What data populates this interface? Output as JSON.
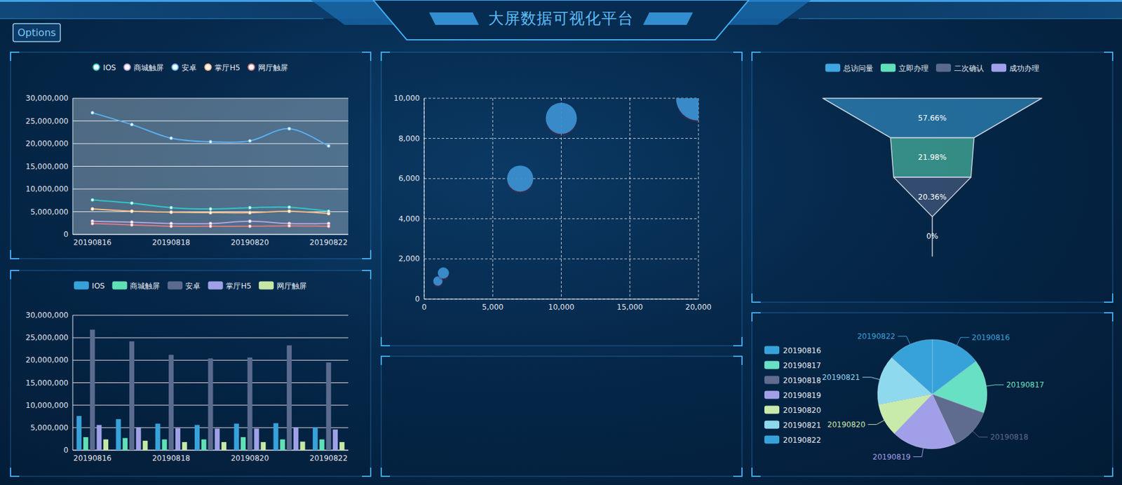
{
  "page": {
    "title": "大屏数据可视化平台",
    "button": "Options"
  },
  "chart_data": [
    {
      "type": "line",
      "categories": [
        "20190816",
        null,
        "20190818",
        null,
        "20190820",
        null,
        "20190822"
      ],
      "series": [
        {
          "name": "IOS",
          "color": "#2ec7c9",
          "values": [
            7600000,
            6900000,
            5900000,
            5600000,
            5900000,
            6000000,
            5100000
          ]
        },
        {
          "name": "商城触屏",
          "color": "#b6a2de",
          "values": [
            2900000,
            2700000,
            2400000,
            2400000,
            2900000,
            2400000,
            2400000
          ]
        },
        {
          "name": "安卓",
          "color": "#5ab1ef",
          "values": [
            26800000,
            24200000,
            21200000,
            20400000,
            20600000,
            23300000,
            19500000
          ]
        },
        {
          "name": "掌厅H5",
          "color": "#ffb980",
          "values": [
            5600000,
            5100000,
            4900000,
            4800000,
            4800000,
            5100000,
            4600000
          ]
        },
        {
          "name": "网厅触屏",
          "color": "#d87a80",
          "values": [
            2400000,
            2100000,
            1800000,
            1800000,
            1800000,
            1900000,
            1800000
          ]
        }
      ],
      "ylim": [
        0,
        30000000
      ],
      "yticks": [
        0,
        {
          "value": 5000000,
          "label": "5,000,000"
        },
        {
          "value": 10000000,
          "label": "10,000,000"
        },
        {
          "value": 15000000,
          "label": "15,000,000"
        },
        {
          "value": 20000000,
          "label": "20,000,000"
        },
        {
          "value": 25000000,
          "label": "25,000,000"
        },
        {
          "value": 30000000,
          "label": "30,000,000"
        }
      ],
      "grid": true,
      "legend": "top",
      "marker": "circle",
      "line_style": "smooth"
    },
    {
      "type": "bar",
      "categories": [
        "20190816",
        null,
        "20190818",
        null,
        "20190820",
        null,
        "20190822"
      ],
      "series": [
        {
          "name": "IOS",
          "color": "#37a2da",
          "values": [
            7600000,
            6900000,
            5900000,
            5600000,
            5900000,
            6000000,
            5100000
          ]
        },
        {
          "name": "商城触屏",
          "color": "#5fe0b5",
          "values": [
            2900000,
            2700000,
            2400000,
            2400000,
            2900000,
            2400000,
            2400000
          ]
        },
        {
          "name": "安卓",
          "color": "#5b6b8f",
          "values": [
            26800000,
            24200000,
            21200000,
            20400000,
            20600000,
            23300000,
            19500000
          ]
        },
        {
          "name": "掌厅H5",
          "color": "#9fa0e8",
          "values": [
            5600000,
            5100000,
            4900000,
            4800000,
            4800000,
            5100000,
            4600000
          ]
        },
        {
          "name": "网厅触屏",
          "color": "#c5e8a5",
          "values": [
            2400000,
            2100000,
            1800000,
            1800000,
            1800000,
            1900000,
            1800000
          ]
        }
      ],
      "ylim": [
        0,
        30000000
      ],
      "yticks": [
        0,
        {
          "value": 5000000,
          "label": "5,000,000"
        },
        {
          "value": 10000000,
          "label": "10,000,000"
        },
        {
          "value": 15000000,
          "label": "15,000,000"
        },
        {
          "value": 20000000,
          "label": "20,000,000"
        },
        {
          "value": 25000000,
          "label": "25,000,000"
        },
        {
          "value": 30000000,
          "label": "30,000,000"
        }
      ],
      "grid": true,
      "legend": "top"
    },
    {
      "type": "scatter",
      "x": [
        1000,
        1400,
        7000,
        10000,
        20000
      ],
      "values": [
        900,
        1300,
        6000,
        9000,
        10000
      ],
      "size": [
        15,
        18,
        42,
        50,
        72
      ],
      "color": "#3b93d3",
      "xlim": [
        0,
        20000
      ],
      "xticks": [
        0,
        {
          "value": 5000,
          "label": "5,000"
        },
        {
          "value": 10000,
          "label": "10,000"
        },
        {
          "value": 15000,
          "label": "15,000"
        },
        {
          "value": 20000,
          "label": "20,000"
        }
      ],
      "ylim": [
        0,
        10000
      ],
      "yticks": [
        0,
        {
          "value": 2000,
          "label": "2,000"
        },
        {
          "value": 4000,
          "label": "4,000"
        },
        {
          "value": 6000,
          "label": "6,000"
        },
        {
          "value": 8000,
          "label": "8,000"
        },
        {
          "value": 10000,
          "label": "10,000"
        }
      ],
      "grid": true
    },
    {
      "type": "funnel",
      "categories": [
        "总访问量",
        "立即办理",
        "二次确认",
        "成功办理"
      ],
      "values": [
        57.66,
        21.98,
        20.36,
        0
      ],
      "value_labels": [
        "57.66%",
        "21.98%",
        "20.36%",
        "0%"
      ],
      "colors": [
        "#3ea6e0",
        "#5fe0b9",
        "#5a6a8e",
        "#a0a0ea"
      ],
      "data_labels": true,
      "legend": "top"
    },
    {
      "type": "pie",
      "categories": [
        "20190816",
        "20190817",
        "20190818",
        "20190819",
        "20190820",
        "20190821",
        "20190822"
      ],
      "values": [
        53,
        57,
        45,
        69,
        35,
        53,
        48
      ],
      "colors": [
        "#37a2da",
        "#67e0c3",
        "#5f6b8f",
        "#a09fe8",
        "#c8eaaa",
        "#8fd9ee",
        "#37a2da"
      ],
      "legend": "left"
    }
  ]
}
